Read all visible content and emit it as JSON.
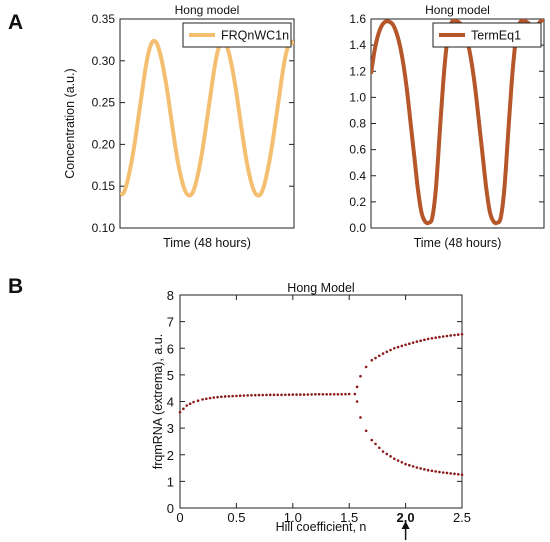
{
  "figure": {
    "panel_labels": [
      "A",
      "B"
    ]
  },
  "chart_data": [
    {
      "type": "line",
      "title": "Hong model",
      "xlabel": "Time (48 hours)",
      "ylabel": "Concentration (a.u.)",
      "ylim": [
        0.1,
        0.35
      ],
      "yticks": [
        "0.10",
        "0.15",
        "0.20",
        "0.25",
        "0.30",
        "0.35"
      ],
      "legend": "top-right",
      "color": "#f5bf72",
      "series": [
        {
          "name": "FRQnWC1n",
          "x": [
            0,
            1,
            2,
            3,
            4,
            5,
            6,
            7,
            8,
            9,
            10,
            11,
            12,
            13,
            14,
            15,
            16,
            17,
            18,
            19,
            20,
            21,
            22,
            23,
            24,
            25,
            26,
            27,
            28,
            29,
            30,
            31,
            32,
            33,
            34,
            35,
            36,
            37,
            38,
            39,
            40,
            41,
            42,
            43,
            44,
            45,
            46,
            47,
            48
          ],
          "values": [
            0.14,
            0.142,
            0.155,
            0.175,
            0.2,
            0.23,
            0.26,
            0.29,
            0.312,
            0.323,
            0.322,
            0.31,
            0.29,
            0.265,
            0.235,
            0.205,
            0.178,
            0.158,
            0.144,
            0.139,
            0.142,
            0.155,
            0.175,
            0.2,
            0.23,
            0.26,
            0.29,
            0.312,
            0.323,
            0.322,
            0.31,
            0.29,
            0.265,
            0.235,
            0.205,
            0.178,
            0.158,
            0.144,
            0.139,
            0.142,
            0.155,
            0.175,
            0.2,
            0.23,
            0.26,
            0.29,
            0.312,
            0.323,
            0.32
          ]
        }
      ]
    },
    {
      "type": "line",
      "title": "Hong model",
      "xlabel": "Time (48 hours)",
      "ylabel": "",
      "ylim": [
        0.0,
        1.6
      ],
      "yticks": [
        "0.0",
        "0.2",
        "0.4",
        "0.6",
        "0.8",
        "1.0",
        "1.2",
        "1.4",
        "1.6"
      ],
      "legend": "top-right",
      "color": "#b5572a",
      "series": [
        {
          "name": "TermEq1",
          "x": [
            0,
            1,
            2,
            3,
            4,
            5,
            6,
            7,
            8,
            9,
            10,
            11,
            12,
            13,
            14,
            15,
            16,
            17,
            18,
            19,
            20,
            21,
            22,
            23,
            24,
            25,
            26,
            27,
            28,
            29,
            30,
            31,
            32,
            33,
            34,
            35,
            36,
            37,
            38,
            39,
            40,
            41,
            42,
            43,
            44,
            45,
            46,
            47,
            48
          ],
          "values": [
            1.18,
            1.36,
            1.48,
            1.55,
            1.58,
            1.58,
            1.56,
            1.5,
            1.4,
            1.25,
            1.05,
            0.8,
            0.55,
            0.3,
            0.12,
            0.05,
            0.04,
            0.08,
            0.3,
            0.7,
            1.1,
            1.4,
            1.55,
            1.59,
            1.58,
            1.56,
            1.5,
            1.4,
            1.25,
            1.05,
            0.8,
            0.55,
            0.3,
            0.12,
            0.05,
            0.04,
            0.08,
            0.3,
            0.7,
            1.1,
            1.4,
            1.55,
            1.59,
            1.58,
            1.56,
            1.52,
            1.55,
            1.58,
            1.6
          ]
        }
      ]
    },
    {
      "type": "scatter",
      "title": "Hong Model",
      "xlabel": "Hill coefficient, n",
      "ylabel": "frqmRNA (extrema), a.u.",
      "xlim": [
        0,
        2.5
      ],
      "ylim": [
        0,
        8
      ],
      "xticks": [
        "0",
        "0.5",
        "1.0",
        "1.5",
        "2.0",
        "2.5"
      ],
      "yticks": [
        "0",
        "1",
        "2",
        "3",
        "4",
        "5",
        "6",
        "7",
        "8"
      ],
      "arrow_at_x": 2.0,
      "color": "#8b1a1a",
      "branches": [
        {
          "x": [
            0.0,
            0.06,
            0.12,
            0.2,
            0.3,
            0.4,
            0.5,
            0.6,
            0.7,
            0.8,
            0.9,
            1.0,
            1.1,
            1.2,
            1.3,
            1.4,
            1.5,
            1.55
          ],
          "values": [
            3.6,
            3.85,
            3.98,
            4.08,
            4.15,
            4.19,
            4.21,
            4.23,
            4.24,
            4.25,
            4.25,
            4.26,
            4.26,
            4.27,
            4.27,
            4.27,
            4.28,
            4.28
          ]
        },
        {
          "x": [
            1.57,
            1.6,
            1.65,
            1.7,
            1.8,
            1.9,
            2.0,
            2.1,
            2.2,
            2.3,
            2.4,
            2.5
          ],
          "values": [
            4.55,
            4.95,
            5.3,
            5.55,
            5.8,
            6.0,
            6.13,
            6.25,
            6.35,
            6.42,
            6.48,
            6.53
          ]
        },
        {
          "x": [
            1.57,
            1.6,
            1.65,
            1.7,
            1.8,
            1.9,
            2.0,
            2.1,
            2.2,
            2.3,
            2.4,
            2.5
          ],
          "values": [
            4.0,
            3.4,
            2.9,
            2.55,
            2.12,
            1.85,
            1.65,
            1.52,
            1.42,
            1.35,
            1.3,
            1.25
          ]
        }
      ]
    }
  ]
}
